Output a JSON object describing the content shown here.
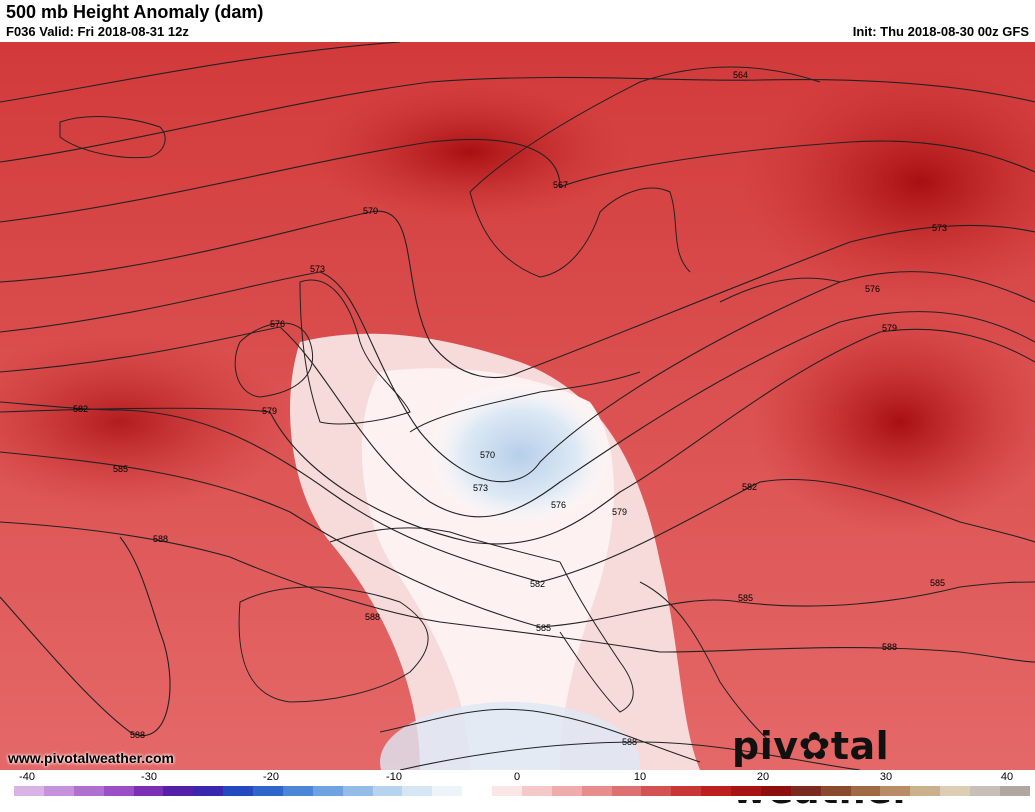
{
  "header": {
    "title": "500 mb Height Anomaly (dam)",
    "valid": "F036 Valid: Fri 2018-08-31 12z",
    "init": "Init: Thu 2018-08-30 00z GFS"
  },
  "footer": {
    "website": "www.pivotalweather.com",
    "logo_text_left": "piv",
    "logo_text_right": "tal weather"
  },
  "colorbar": {
    "ticks": [
      "-40",
      "-30",
      "-20",
      "-10",
      "0",
      "10",
      "20",
      "30",
      "40"
    ],
    "colors": [
      "#d9b3e6",
      "#c792dc",
      "#b070d0",
      "#9a4fc4",
      "#7a2fb4",
      "#5420a8",
      "#3a27b0",
      "#2448c0",
      "#2f66cc",
      "#4c86d6",
      "#6fa2e0",
      "#93bde8",
      "#b7d4ef",
      "#d6e6f5",
      "#eef4fa",
      "#ffffff",
      "#fbe6e6",
      "#f5c9c9",
      "#eeacac",
      "#e68e8e",
      "#dd7070",
      "#d45252",
      "#c93636",
      "#bd1f1f",
      "#a81414",
      "#8e0d0d",
      "#7a2a1e",
      "#8a4a2e",
      "#a06a46",
      "#b88c66",
      "#cbb08c",
      "#ddcdb4",
      "#c8c0b8",
      "#b0a8a0"
    ]
  },
  "contour_labels": [
    {
      "text": "564"
    },
    {
      "text": "567"
    },
    {
      "text": "570"
    },
    {
      "text": "573"
    },
    {
      "text": "573"
    },
    {
      "text": "576"
    },
    {
      "text": "576"
    },
    {
      "text": "579"
    },
    {
      "text": "579"
    },
    {
      "text": "582"
    },
    {
      "text": "585"
    },
    {
      "text": "588"
    },
    {
      "text": "588"
    },
    {
      "text": "588"
    },
    {
      "text": "570"
    },
    {
      "text": "573"
    },
    {
      "text": "576"
    },
    {
      "text": "579"
    },
    {
      "text": "582"
    },
    {
      "text": "585"
    },
    {
      "text": "582"
    },
    {
      "text": "585"
    },
    {
      "text": "585"
    },
    {
      "text": "588"
    },
    {
      "text": "588"
    }
  ]
}
